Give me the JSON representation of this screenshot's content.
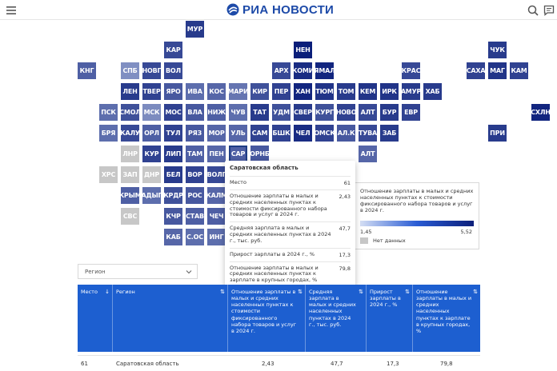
{
  "header": {
    "logo_text": "РИА НОВОСТИ",
    "icons": [
      "menu-icon",
      "search-icon",
      "feedback-icon"
    ]
  },
  "map": {
    "tiles": [
      {
        "code": "МУР",
        "level": 0.8
      },
      {
        "code": "КАР",
        "level": 0.7
      },
      {
        "code": "НЕН",
        "level": 1.0
      },
      {
        "code": "ЧУК",
        "level": 0.8
      },
      {
        "code": "КНГ",
        "level": 0.55
      },
      {
        "code": "СПБ",
        "level": 0.22
      },
      {
        "code": "НОВГ",
        "level": 0.7
      },
      {
        "code": "ВОЛ",
        "level": 0.7
      },
      {
        "code": "АРХ",
        "level": 0.7
      },
      {
        "code": "КОМИ",
        "level": 0.9
      },
      {
        "code": "ЯМАЛ",
        "level": 0.95
      },
      {
        "code": "КРАС",
        "level": 0.7
      },
      {
        "code": "САХА",
        "level": 0.75
      },
      {
        "code": "МАГ",
        "level": 0.85
      },
      {
        "code": "КАМ",
        "level": 0.75
      },
      {
        "code": "ЛЕН",
        "level": 0.8
      },
      {
        "code": "ТВЕР",
        "level": 0.75
      },
      {
        "code": "ЯРО",
        "level": 0.6
      },
      {
        "code": "ИВА",
        "level": 0.45
      },
      {
        "code": "КОС",
        "level": 0.5
      },
      {
        "code": "МАРИ",
        "level": 0.4
      },
      {
        "code": "КИР",
        "level": 0.65
      },
      {
        "code": "ПЕР",
        "level": 0.75
      },
      {
        "code": "ХАН",
        "level": 0.95
      },
      {
        "code": "ТЮМ",
        "level": 0.85
      },
      {
        "code": "ТОМ",
        "level": 0.8
      },
      {
        "code": "КЕМ",
        "level": 0.85
      },
      {
        "code": "ИРК",
        "level": 0.85
      },
      {
        "code": "АМУР",
        "level": 0.8
      },
      {
        "code": "ХАБ",
        "level": 0.8
      },
      {
        "code": "ПСК",
        "level": 0.45
      },
      {
        "code": "СМОЛ",
        "level": 0.65
      },
      {
        "code": "МСК",
        "level": 0.25
      },
      {
        "code": "МОС",
        "level": 0.75
      },
      {
        "code": "ВЛА",
        "level": 0.6
      },
      {
        "code": "НИЖ",
        "level": 0.55
      },
      {
        "code": "ЧУВ",
        "level": 0.45
      },
      {
        "code": "ТАТ",
        "level": 0.8
      },
      {
        "code": "УДМ",
        "level": 0.65
      },
      {
        "code": "СВЕР",
        "level": 0.8
      },
      {
        "code": "КУРГ",
        "level": 0.65
      },
      {
        "code": "НОВО",
        "level": 0.75
      },
      {
        "code": "АЛТ",
        "level": 0.7
      },
      {
        "code": "БУР",
        "level": 0.8
      },
      {
        "code": "ЕВР",
        "level": 0.75
      },
      {
        "code": "СХЛН",
        "level": 0.95
      },
      {
        "code": "БРЯ",
        "level": 0.45
      },
      {
        "code": "КАЛУ",
        "level": 0.7
      },
      {
        "code": "ОРЛ",
        "level": 0.55
      },
      {
        "code": "ТУЛ",
        "level": 0.75
      },
      {
        "code": "РЯЗ",
        "level": 0.6
      },
      {
        "code": "МОР",
        "level": 0.5
      },
      {
        "code": "УЛЬ",
        "level": 0.5
      },
      {
        "code": "САМ",
        "level": 0.75
      },
      {
        "code": "БШК",
        "level": 0.75
      },
      {
        "code": "ЧЕЛ",
        "level": 0.9
      },
      {
        "code": "ОМСК",
        "level": 0.75
      },
      {
        "code": "АЛ.К",
        "level": 0.6
      },
      {
        "code": "ТУВА",
        "level": 0.7
      },
      {
        "code": "ЗАБ",
        "level": 0.8
      },
      {
        "code": "ПРИ",
        "level": 0.8
      },
      {
        "code": "ЛНР",
        "level": -1
      },
      {
        "code": "КУР",
        "level": 0.75
      },
      {
        "code": "ЛИП",
        "level": 0.8
      },
      {
        "code": "ТАМ",
        "level": 0.55
      },
      {
        "code": "ПЕН",
        "level": 0.5
      },
      {
        "code": "САР",
        "level": 0.55
      },
      {
        "code": "ОРНБ",
        "level": 0.6
      },
      {
        "code": "АЛТ",
        "level": 0.5
      },
      {
        "code": "ХРС",
        "level": -1
      },
      {
        "code": "ЗАП",
        "level": -1
      },
      {
        "code": "ДНР",
        "level": -1
      },
      {
        "code": "БЕЛ",
        "level": 0.8
      },
      {
        "code": "ВОР",
        "level": 0.75
      },
      {
        "code": "ВОЛГ",
        "level": 0.7
      },
      {
        "code": "КРЫМ",
        "level": 0.55
      },
      {
        "code": "АДЫГ",
        "level": 0.45
      },
      {
        "code": "КРДР",
        "level": 0.65
      },
      {
        "code": "РОС",
        "level": 0.6
      },
      {
        "code": "КАЛМ",
        "level": 0.5
      },
      {
        "code": "СВС",
        "level": -1
      },
      {
        "code": "КЧР",
        "level": 0.6
      },
      {
        "code": "СТАВ",
        "level": 0.55
      },
      {
        "code": "ЧЕЧ",
        "level": 0.55
      },
      {
        "code": "КАБ",
        "level": 0.5
      },
      {
        "code": "С.ОС",
        "level": 0.45
      },
      {
        "code": "ИНГ",
        "level": 0.45
      }
    ]
  },
  "tooltip": {
    "title": "Саратовская область",
    "rows": [
      {
        "label": "Место",
        "value": "61"
      },
      {
        "label": "Отношение зарплаты в малых и средних населенных пунктах к стоимости фиксированного набора товаров и услуг в 2024 г.",
        "value": "2,43"
      },
      {
        "label": "Средняя зарплата в малых и средних населенных пунктах в 2024 г., тыс. руб.",
        "value": "47,7"
      },
      {
        "label": "Прирост зарплаты в 2024 г., %",
        "value": "17,3"
      },
      {
        "label": "Отношение зарплаты в малых и средних населенных пунктах к зарплате в крупных городах, %",
        "value": "79,8"
      }
    ]
  },
  "legend": {
    "title": "Отношение зарплаты в малых и средних населенных пунктах к стоимости фиксированного набора товаров и услуг в 2024 г.",
    "min": "1,45",
    "max": "5,52",
    "no_data": "Нет данных",
    "colors": {
      "low": "#d4def4",
      "mid": "#2a5cd4",
      "high": "#0c1f7a",
      "no_data": "#c7c7c7"
    }
  },
  "filter": {
    "region_placeholder": "Регион"
  },
  "table": {
    "columns": [
      {
        "label": "Место",
        "sort": "↓"
      },
      {
        "label": "Регион",
        "sort": "⇅"
      },
      {
        "label": "Отношение зарплаты в малых и средних населенных пунктах к стоимости фиксированного набора товаров и услуг в 2024 г.",
        "sort": "⇅"
      },
      {
        "label": "Средняя зарплата в малых и средних населенных пунктах в 2024 г., тыс. руб.",
        "sort": "⇅"
      },
      {
        "label": "Прирост зарплаты в 2024 г., %",
        "sort": "⇅"
      },
      {
        "label": "Отношение зарплаты в малых и средних населенных пунктах к зарплате в крупных городах, %",
        "sort": "⇅"
      }
    ],
    "rows": [
      {
        "place": "61",
        "region": "Саратовская область",
        "ratio": "2,43",
        "salary": "47,7",
        "growth": "17,3",
        "big": "79,8"
      }
    ]
  }
}
